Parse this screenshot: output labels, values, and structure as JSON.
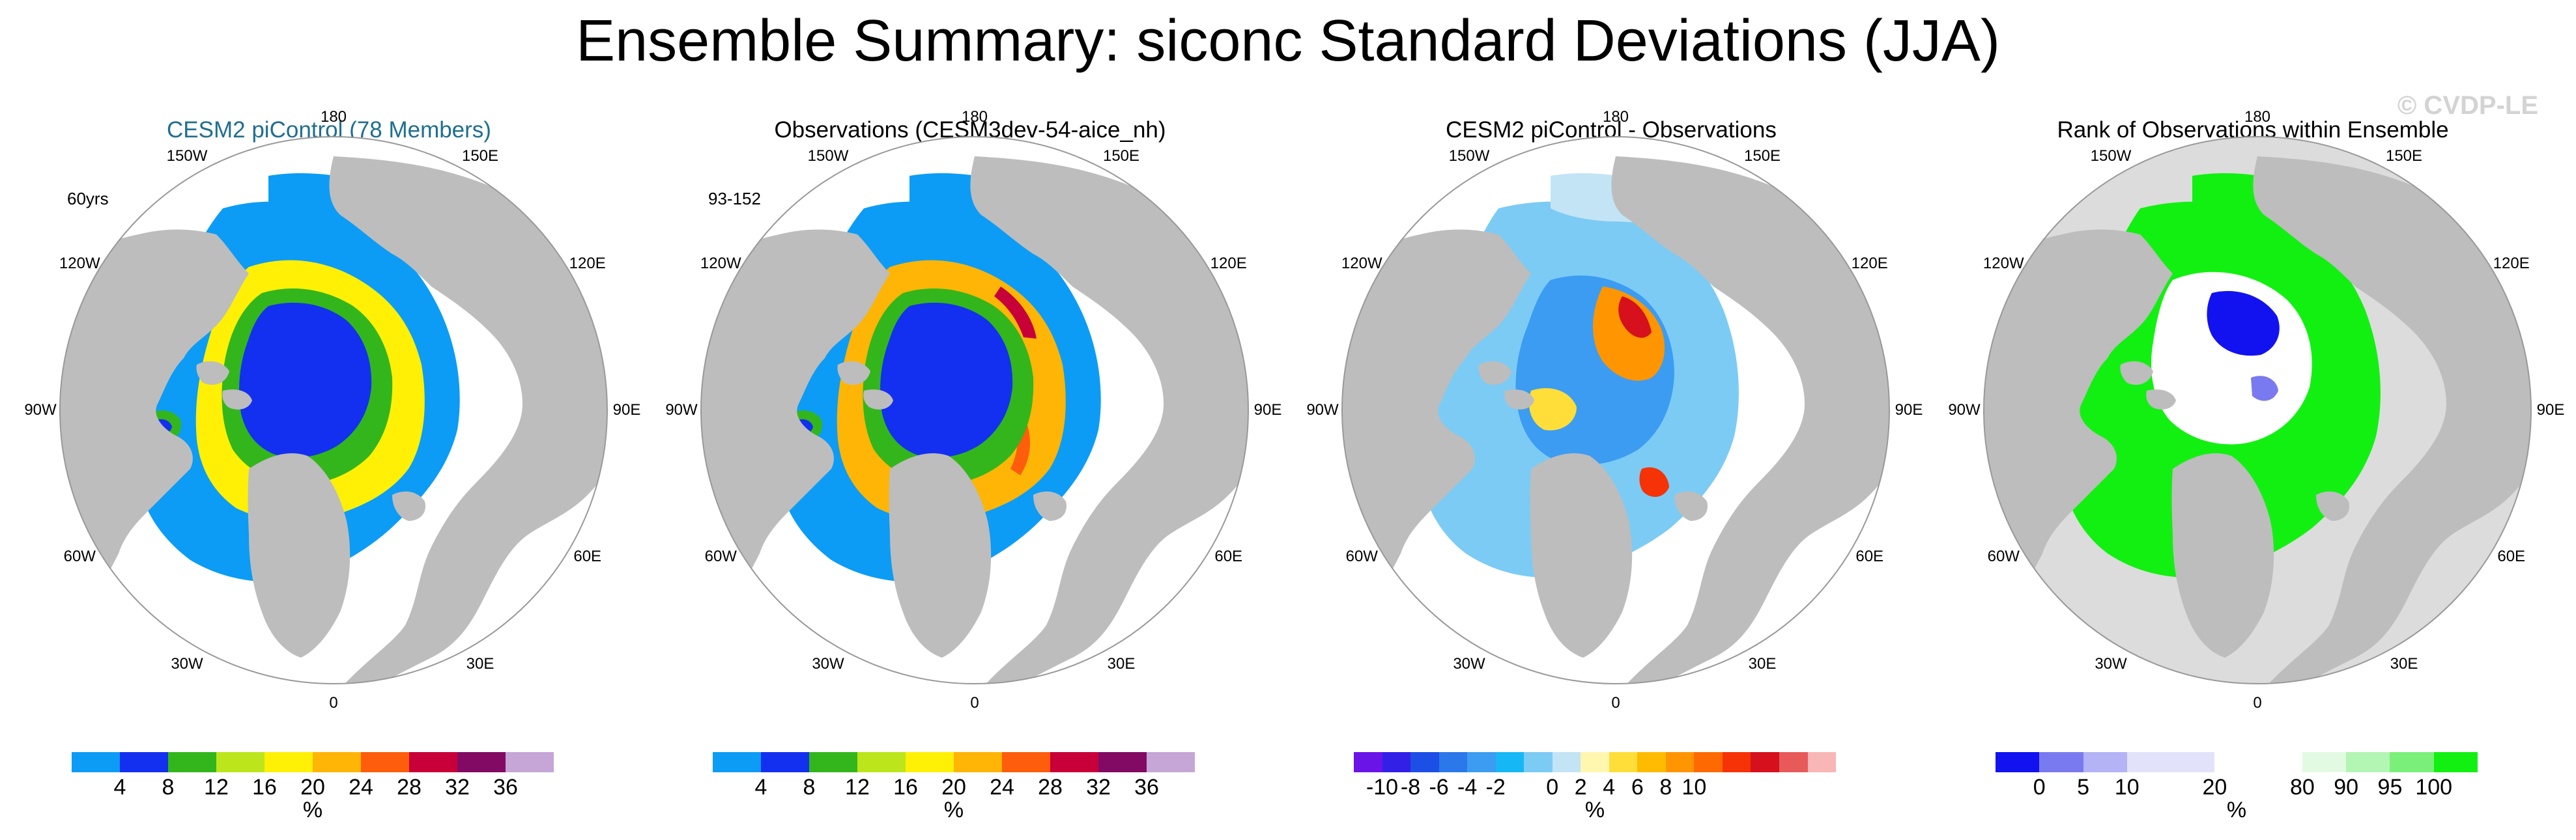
{
  "title": "Ensemble Summary: siconc Standard Deviations (JJA)",
  "watermark": "© CVDP-LE",
  "colors": {
    "title_blue": "#1f6e8f",
    "ocean": "#ffffff",
    "land": "#bdbdbd",
    "rank_ocean": "#dcdcdc",
    "outline": "#999999"
  },
  "panels": [
    {
      "title": "CESM2 piControl (78 Members)",
      "title_color": "#1f6e8f",
      "note": "60yrs",
      "lon_labels": [
        "180",
        "150E",
        "120E",
        "90E",
        "60E",
        "30E",
        "0",
        "30W",
        "60W",
        "90W",
        "120W",
        "150W"
      ],
      "colorbar": [
        "#0c9cf5",
        "#1330f0",
        "#33b61b",
        "#bde51c",
        "#fff005",
        "#ffb505",
        "#fe5d0b",
        "#c7003a",
        "#830a64",
        "#c5a6d6"
      ],
      "ticks": [
        "4",
        "8",
        "12",
        "16",
        "20",
        "24",
        "28",
        "32",
        "36"
      ],
      "units": "%",
      "map_type": "std",
      "obs_variant": false
    },
    {
      "title": "Observations (CESM3dev-54-aice_nh)",
      "title_color": "#000000",
      "note": "93-152",
      "lon_labels": [
        "180",
        "150E",
        "120E",
        "90E",
        "60E",
        "30E",
        "0",
        "30W",
        "60W",
        "90W",
        "120W",
        "150W"
      ],
      "colorbar": [
        "#0c9cf5",
        "#1330f0",
        "#33b61b",
        "#bde51c",
        "#fff005",
        "#ffb505",
        "#fe5d0b",
        "#c7003a",
        "#830a64",
        "#c5a6d6"
      ],
      "ticks": [
        "4",
        "8",
        "12",
        "16",
        "20",
        "24",
        "28",
        "32",
        "36"
      ],
      "units": "%",
      "map_type": "std",
      "obs_variant": true
    },
    {
      "title": "CESM2 piControl - Observations",
      "title_color": "#000000",
      "note": "",
      "lon_labels": [
        "180",
        "150E",
        "120E",
        "90E",
        "60E",
        "30E",
        "0",
        "30W",
        "60W",
        "90W",
        "120W",
        "150W"
      ],
      "colorbar": [
        "#6a14e8",
        "#3320e6",
        "#1d4fe6",
        "#2a78ea",
        "#3c9cf2",
        "#16b7f5",
        "#7ccbf4",
        "#c3e4f5",
        "#fff7b0",
        "#ffde3a",
        "#ffbb00",
        "#ff9500",
        "#ff6a00",
        "#f53306",
        "#d6101c",
        "#e85a5a",
        "#f9b6b6"
      ],
      "ticks": [
        "-10",
        "-8",
        "-6",
        "-4",
        "-2",
        "0",
        "2",
        "4",
        "6",
        "8",
        "10"
      ],
      "units": "%",
      "map_type": "diff",
      "obs_variant": false
    },
    {
      "title": "Rank of Observations within Ensemble",
      "title_color": "#000000",
      "note": "",
      "lon_labels": [
        "180",
        "150E",
        "120E",
        "90E",
        "60E",
        "30E",
        "0",
        "30W",
        "60W",
        "90W",
        "120W",
        "150W"
      ],
      "colorbar": [
        "#1212f0",
        "#7a7af0",
        "#b3b3f5",
        "#e2e2fa",
        "#e2e2fa",
        "#ffffff",
        "#ffffff",
        "#e2fae2",
        "#b3f5b3",
        "#7af07a",
        "#12f012"
      ],
      "ticks": [
        "0",
        "5",
        "10",
        "20",
        "80",
        "90",
        "95",
        "100"
      ],
      "units": "%",
      "map_type": "rank",
      "obs_variant": false
    }
  ]
}
